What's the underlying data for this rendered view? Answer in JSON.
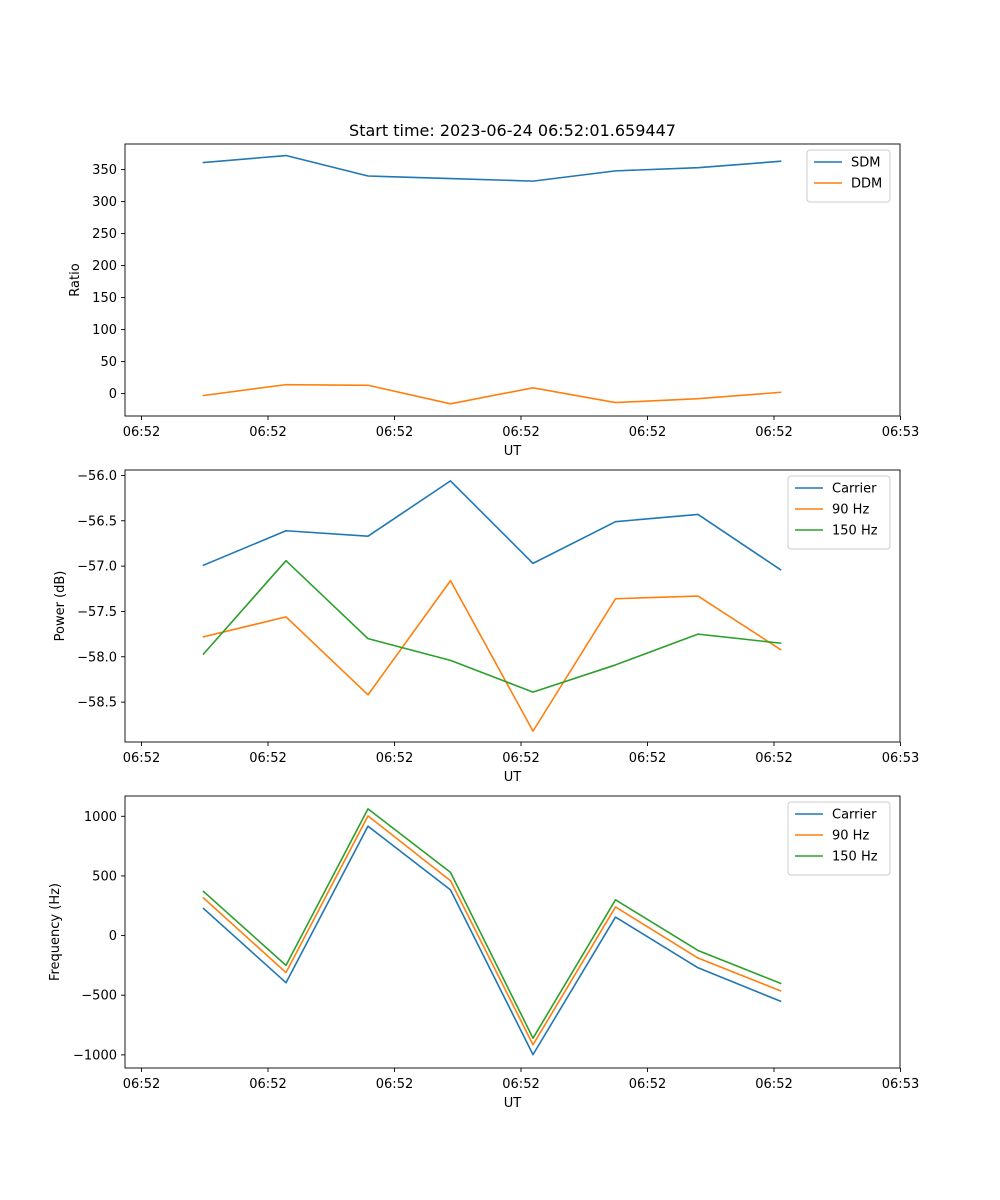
{
  "title": "Start time: 2023-06-24 06:52:01.659447",
  "chart_data": [
    {
      "type": "line",
      "xlabel": "UT",
      "ylabel": "Ratio",
      "x_ticks": [
        "06:52",
        "06:52",
        "06:52",
        "06:52",
        "06:52",
        "06:52",
        "06:53"
      ],
      "y_ticks": [
        "0",
        "50",
        "100",
        "150",
        "200",
        "250",
        "300",
        "350"
      ],
      "ylim": [
        -35,
        390
      ],
      "legend_position": "top-right",
      "grid": false,
      "series": [
        {
          "name": "SDM",
          "color": "#1f77b4",
          "values": [
            361,
            372,
            340,
            336,
            332,
            348,
            353,
            363
          ]
        },
        {
          "name": "DDM",
          "color": "#ff7f0e",
          "values": [
            -3,
            14,
            13,
            -16,
            9,
            -14,
            -8,
            2
          ]
        }
      ]
    },
    {
      "type": "line",
      "xlabel": "UT",
      "ylabel": "Power (dB)",
      "x_ticks": [
        "06:52",
        "06:52",
        "06:52",
        "06:52",
        "06:52",
        "06:52",
        "06:53"
      ],
      "y_ticks": [
        "−58.5",
        "−58.0",
        "−57.5",
        "−57.0",
        "−56.5",
        "−56.0"
      ],
      "ylim": [
        -58.94,
        -55.94
      ],
      "legend_position": "top-right",
      "grid": false,
      "series": [
        {
          "name": "Carrier",
          "color": "#1f77b4",
          "values": [
            -56.99,
            -56.61,
            -56.67,
            -56.06,
            -56.97,
            -56.51,
            -56.43,
            -57.04
          ]
        },
        {
          "name": "90 Hz",
          "color": "#ff7f0e",
          "values": [
            -57.78,
            -57.56,
            -58.42,
            -57.16,
            -58.82,
            -57.36,
            -57.33,
            -57.92
          ]
        },
        {
          "name": "150 Hz",
          "color": "#2ca02c",
          "values": [
            -57.97,
            -56.94,
            -57.8,
            -58.04,
            -58.39,
            -58.09,
            -57.75,
            -57.85
          ]
        }
      ]
    },
    {
      "type": "line",
      "xlabel": "UT",
      "ylabel": "Frequency (Hz)",
      "x_ticks": [
        "06:52",
        "06:52",
        "06:52",
        "06:52",
        "06:52",
        "06:52",
        "06:53"
      ],
      "y_ticks": [
        "−1000",
        "−500",
        "0",
        "500",
        "1000"
      ],
      "ylim": [
        -1110,
        1170
      ],
      "legend_position": "top-right",
      "grid": false,
      "series": [
        {
          "name": "Carrier",
          "color": "#1f77b4",
          "values": [
            227,
            -395,
            917,
            383,
            -998,
            155,
            -270,
            -550
          ]
        },
        {
          "name": "90 Hz",
          "color": "#ff7f0e",
          "values": [
            315,
            -310,
            1003,
            460,
            -915,
            240,
            -188,
            -463
          ]
        },
        {
          "name": "150 Hz",
          "color": "#2ca02c",
          "values": [
            370,
            -250,
            1062,
            530,
            -860,
            300,
            -125,
            -400
          ]
        }
      ]
    }
  ]
}
